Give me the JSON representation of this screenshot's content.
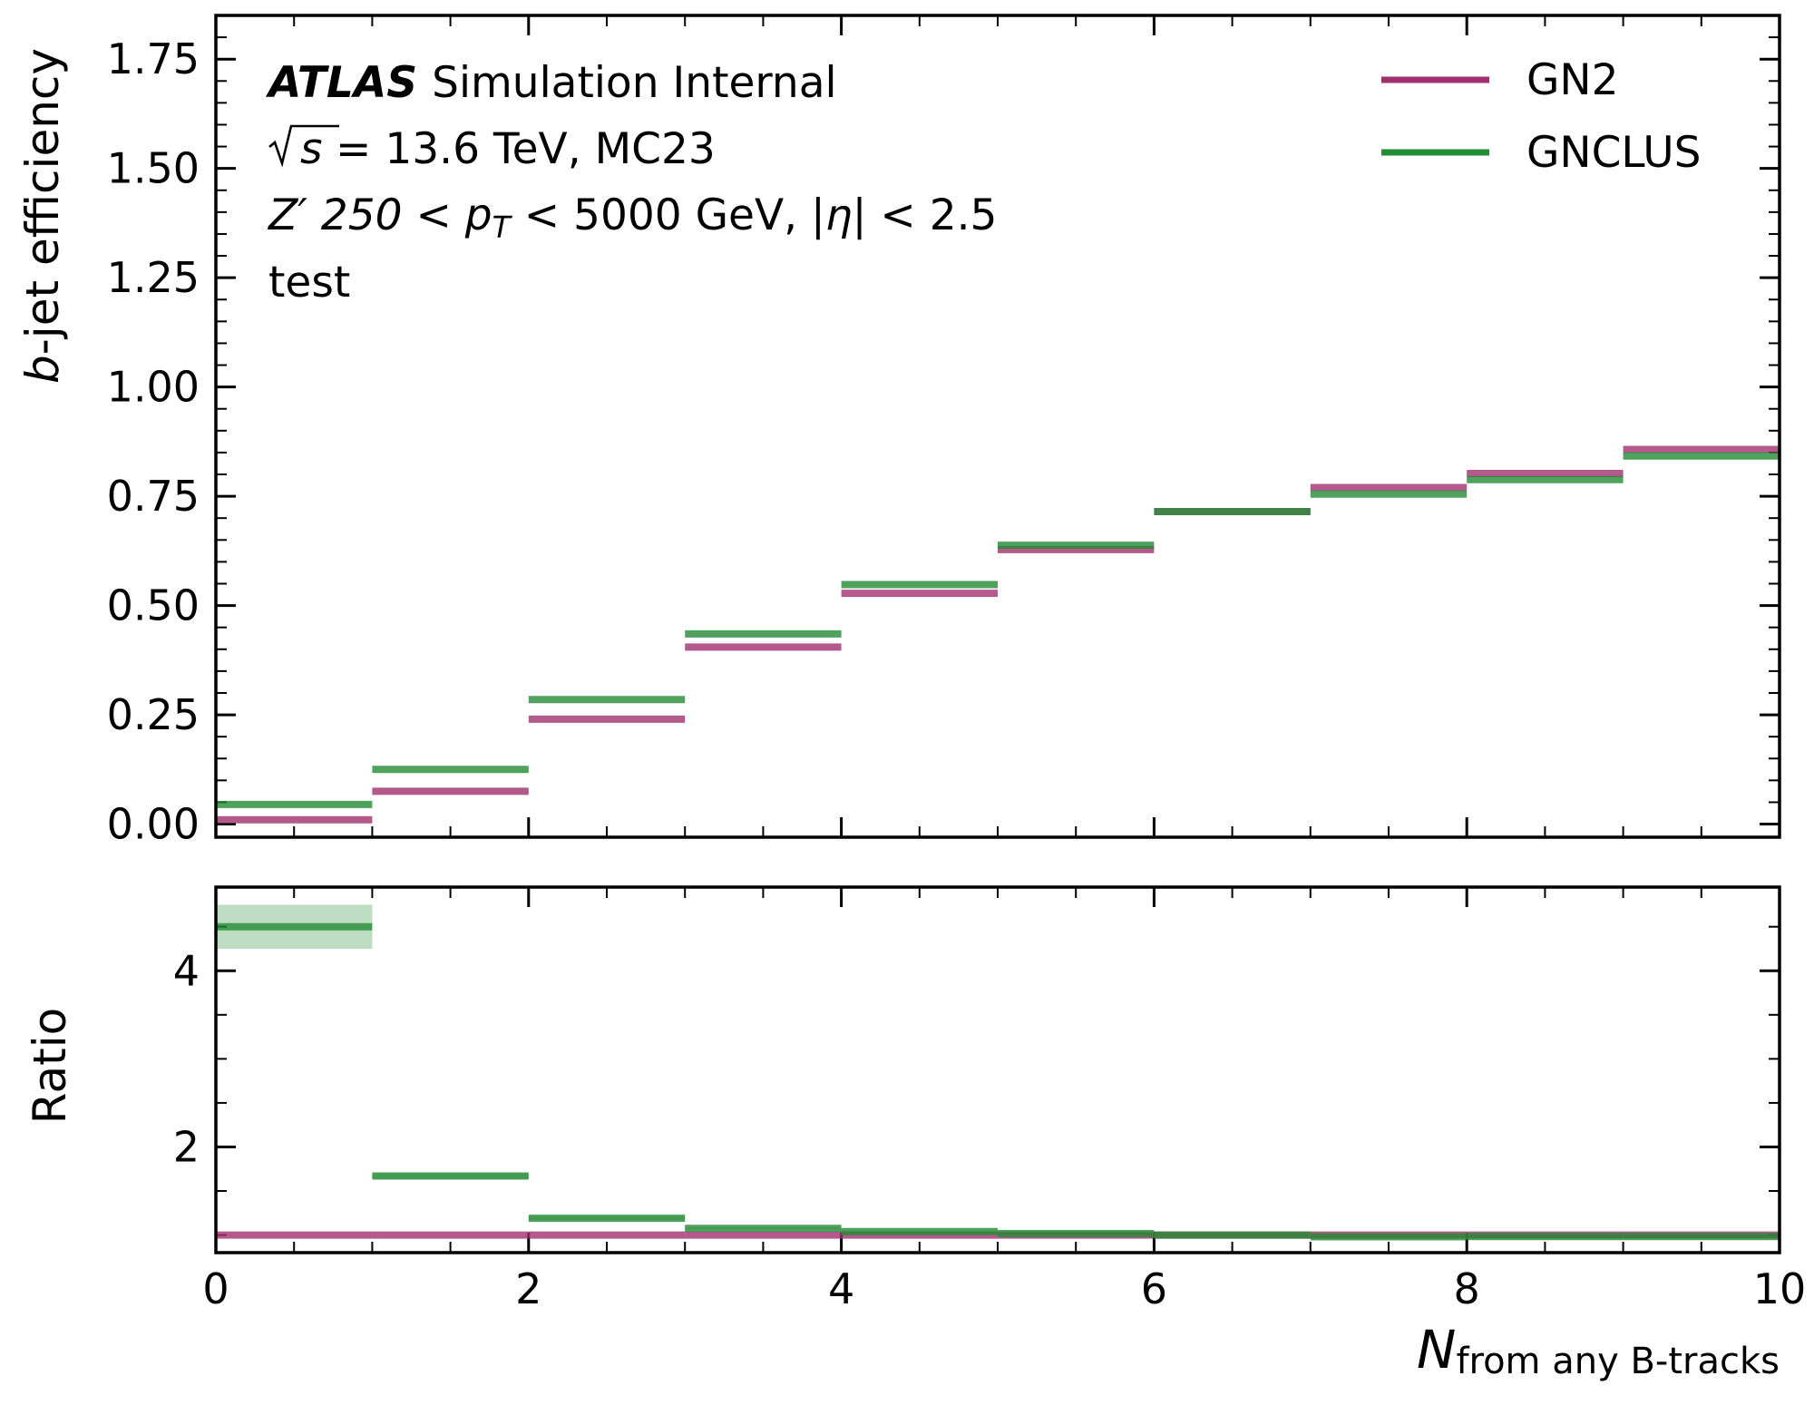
{
  "chart_data": [
    {
      "type": "line",
      "drawstyle": "steps",
      "x_edges": [
        0,
        1,
        2,
        3,
        4,
        5,
        6,
        7,
        8,
        9,
        10
      ],
      "series": [
        {
          "name": "GN2",
          "color": "#a1306e",
          "values": [
            0.01,
            0.075,
            0.24,
            0.405,
            0.528,
            0.628,
            0.715,
            0.77,
            0.802,
            0.857
          ]
        },
        {
          "name": "GNCLUS",
          "color": "#238b34",
          "values": [
            0.045,
            0.125,
            0.285,
            0.435,
            0.548,
            0.638,
            0.715,
            0.755,
            0.788,
            0.842
          ]
        }
      ],
      "ylabel_italic": "b",
      "ylabel_rest": "-jet efficiency",
      "xlim": [
        0,
        10
      ],
      "ylim": [
        -0.03,
        1.85
      ],
      "yticks": [
        "0.00",
        "0.25",
        "0.50",
        "0.75",
        "1.00",
        "1.25",
        "1.50",
        "1.75"
      ],
      "legend_loc": "upper right",
      "annotations": {
        "experiment": "ATLAS",
        "label": "Simulation Internal",
        "line2_rest": " = 13.6 TeV, MC23",
        "line3_z": "Z′ 250 < ",
        "line3_pt": "p",
        "line3_sub": "T",
        "line3_rest": " < 5000 GeV, |",
        "line3_eta": "η",
        "line3_end": "| < 2.5",
        "line4": "test"
      }
    },
    {
      "type": "line",
      "drawstyle": "steps",
      "x_edges": [
        0,
        1,
        2,
        3,
        4,
        5,
        6,
        7,
        8,
        9,
        10
      ],
      "series": [
        {
          "name": "GN2",
          "color": "#a1306e",
          "values": [
            1,
            1,
            1,
            1,
            1,
            1,
            1,
            1,
            1,
            1
          ]
        },
        {
          "name": "GNCLUS",
          "color": "#238b34",
          "values": [
            4.5,
            1.67,
            1.19,
            1.075,
            1.04,
            1.016,
            1.0,
            0.98,
            0.983,
            0.983
          ],
          "uncertainty": [
            0.25,
            0.03,
            0.02,
            0.01,
            0.01,
            0.01,
            0.01,
            0.01,
            0.01,
            0.01
          ]
        }
      ],
      "ylabel": "Ratio",
      "xlim": [
        0,
        10
      ],
      "ylim": [
        0.8,
        4.95
      ],
      "yticks": [
        "2",
        "4"
      ],
      "xticks": [
        "0",
        "2",
        "4",
        "6",
        "8",
        "10"
      ],
      "xlabel_main": "N",
      "xlabel_sub": "from any B-tracks"
    }
  ]
}
